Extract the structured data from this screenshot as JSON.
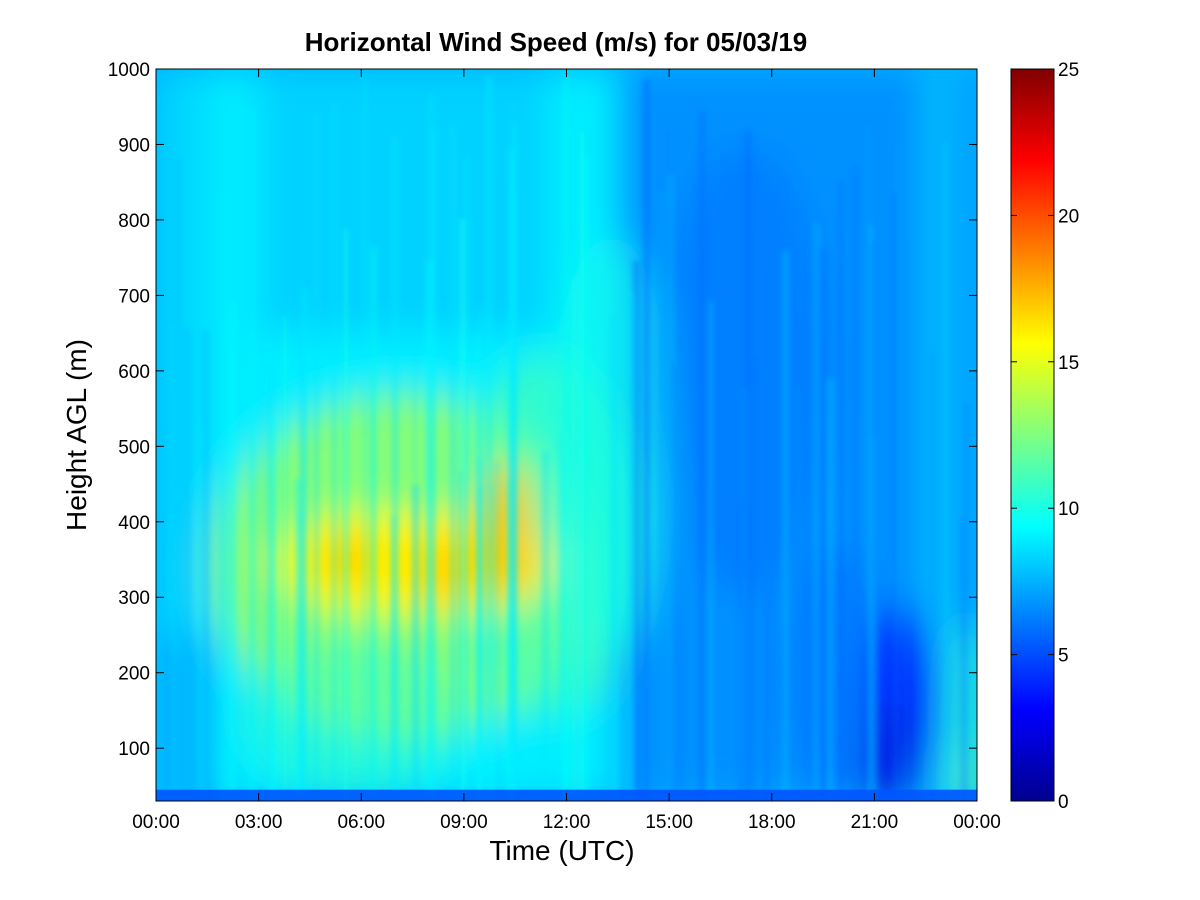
{
  "chart_data": {
    "type": "heatmap",
    "title": "Horizontal Wind Speed (m/s) for 05/03/19",
    "xlabel": "Time (UTC)",
    "ylabel": "Height AGL (m)",
    "x_tick_labels": [
      "00:00",
      "03:00",
      "06:00",
      "09:00",
      "12:00",
      "15:00",
      "18:00",
      "21:00",
      "00:00"
    ],
    "x_tick_hours": [
      0,
      3,
      6,
      9,
      12,
      15,
      18,
      21,
      24
    ],
    "xlim_hours": [
      0,
      24
    ],
    "y_ticks": [
      100,
      200,
      300,
      400,
      500,
      600,
      700,
      800,
      900,
      1000
    ],
    "ylim": [
      30,
      1000
    ],
    "colorbar": {
      "colormap": "jet",
      "range": [
        0,
        25
      ],
      "ticks": [
        0,
        5,
        10,
        15,
        20,
        25
      ]
    },
    "features": [
      {
        "hours": [
          3,
          11.5
        ],
        "height_m": [
          300,
          420
        ],
        "peak_speed": 17,
        "note": "low-level jet core"
      },
      {
        "hours": [
          21,
          23
        ],
        "height_m": [
          50,
          250
        ],
        "min_speed": 2,
        "note": "calm region"
      }
    ]
  }
}
